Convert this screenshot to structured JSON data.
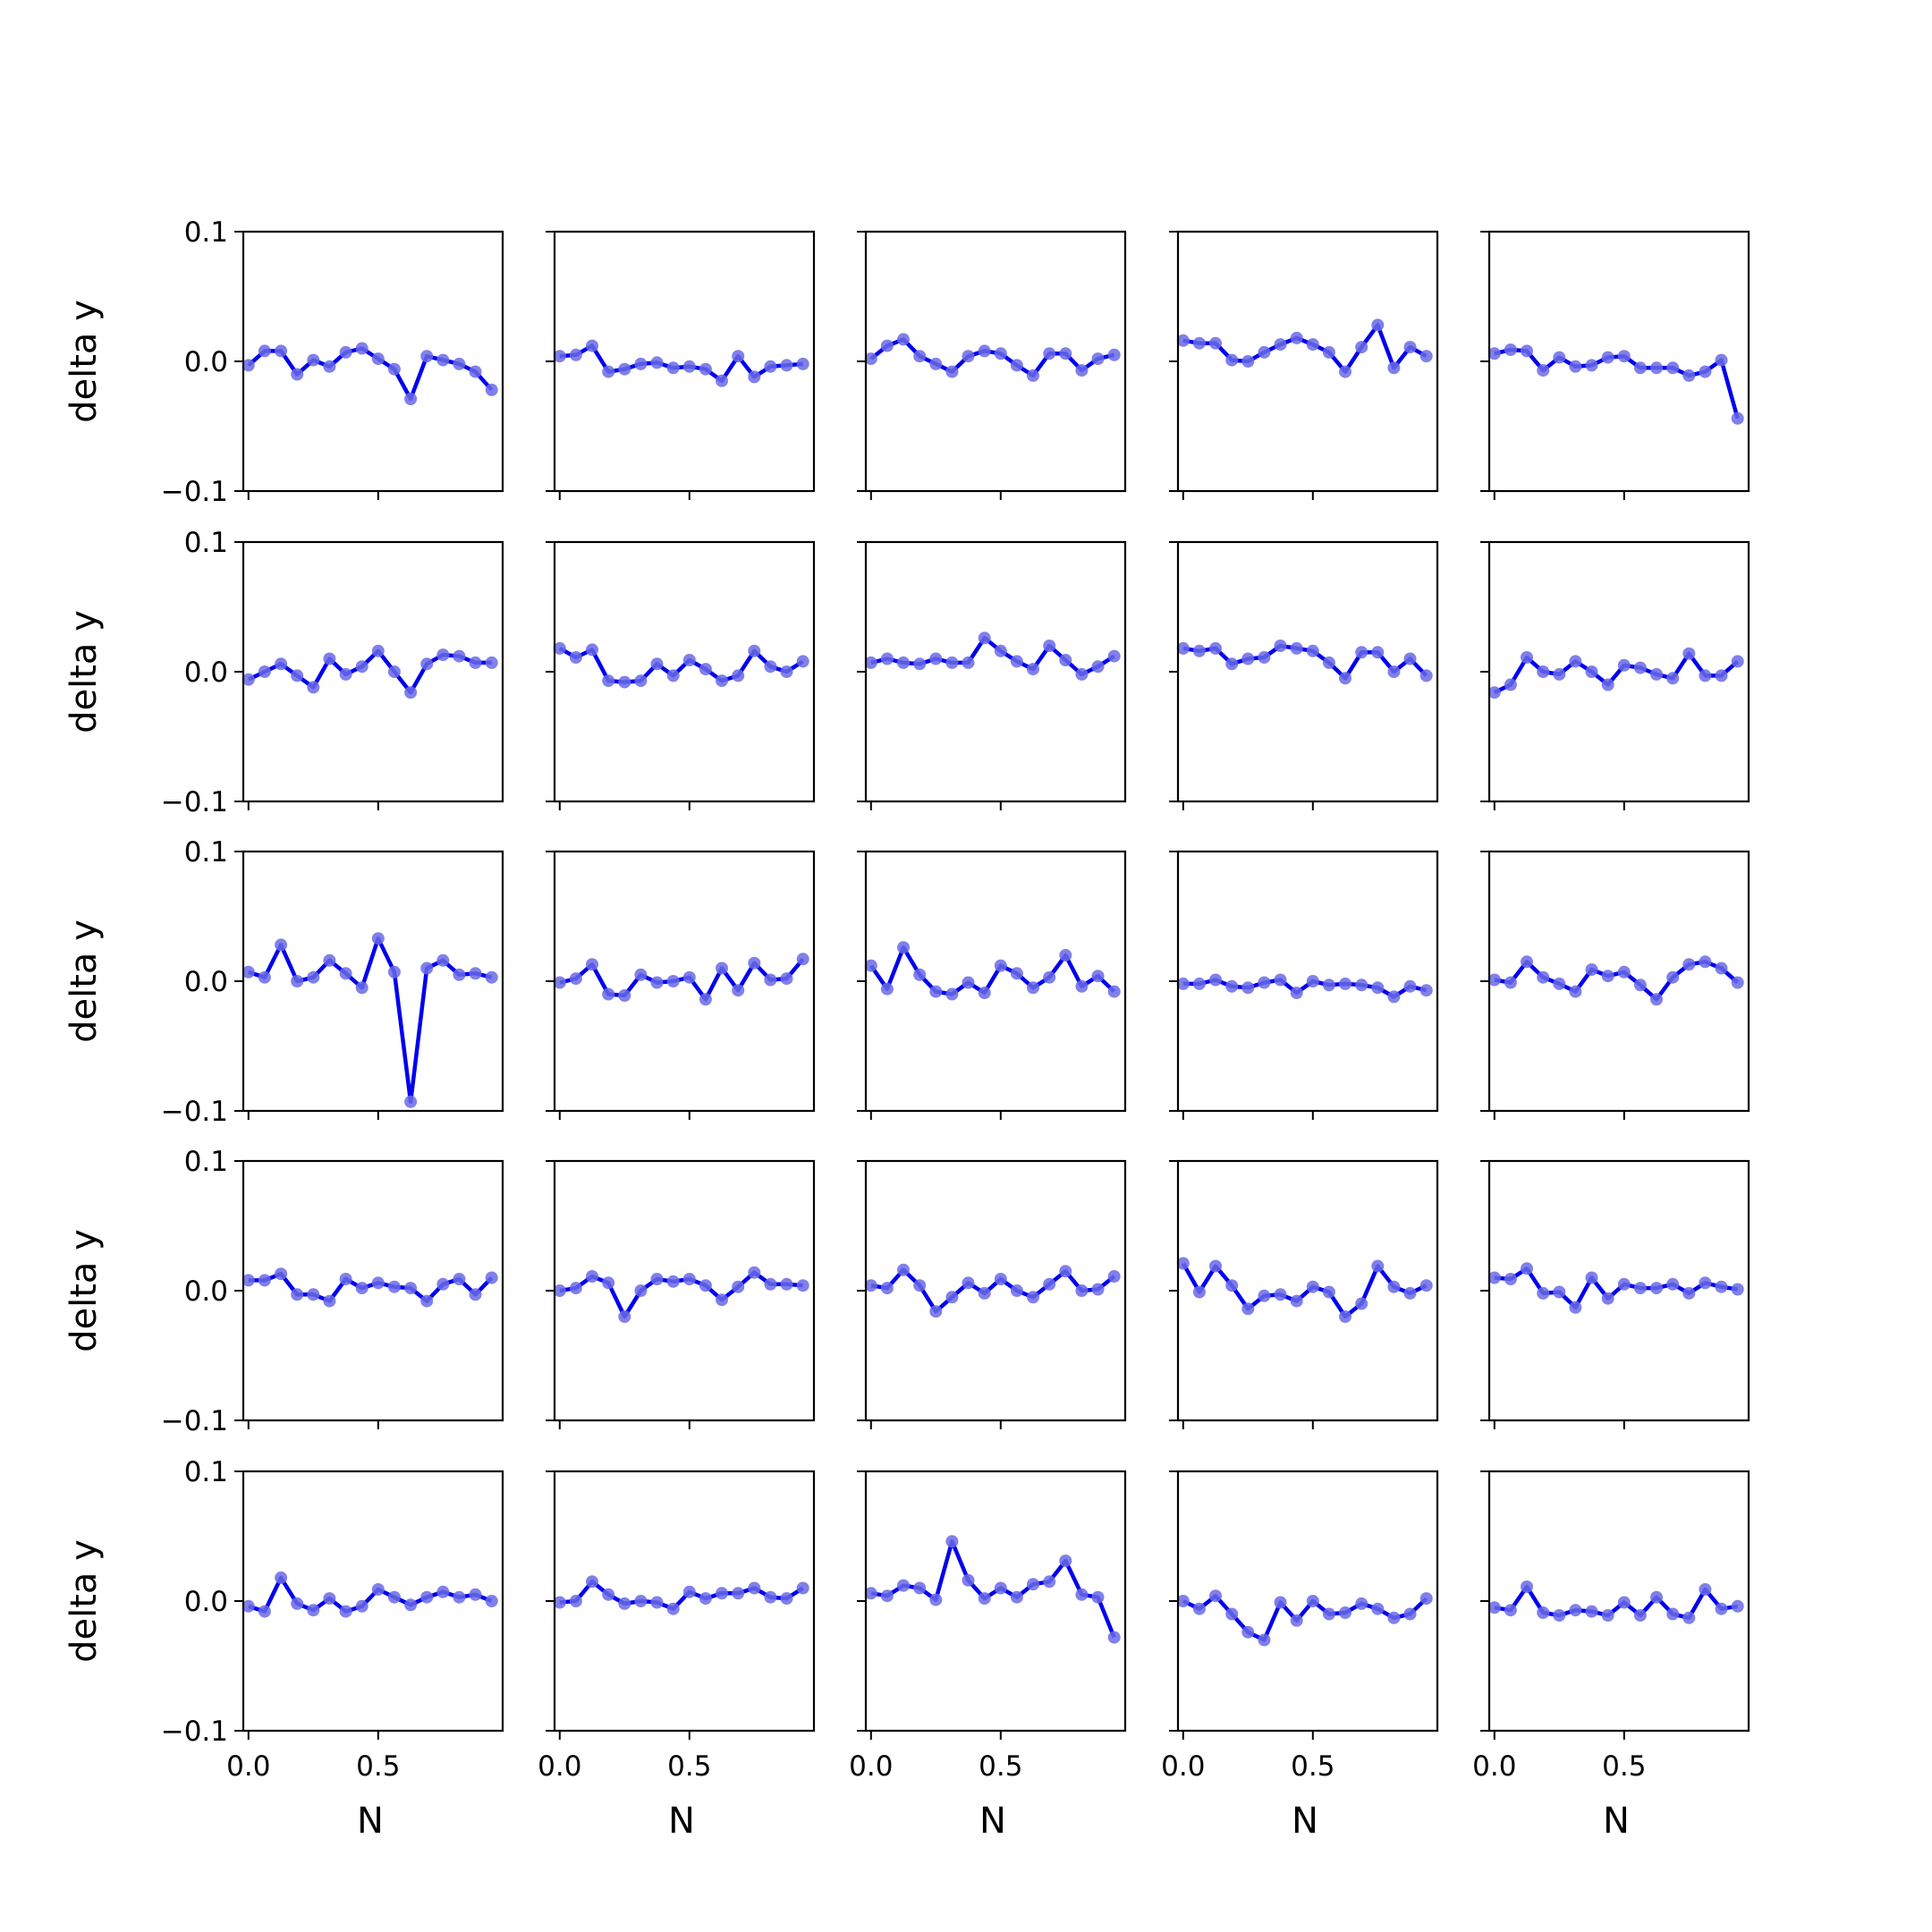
{
  "figure": {
    "rows": 5,
    "cols": 5,
    "line_color": "#0000ee",
    "marker_color": "#6a6ae6",
    "axis_color": "#000000"
  },
  "chart_data": {
    "type": "line",
    "layout": "5x5 grid of small multiples, shared x and y axes",
    "xlabel": "N",
    "ylabel": "delta y",
    "xlim": [
      -0.02,
      0.98
    ],
    "ylim": [
      -0.1,
      0.1
    ],
    "xticks": [
      0.0,
      0.5
    ],
    "xtick_labels": [
      "0.0",
      "0.5"
    ],
    "yticks": [
      -0.1,
      0.0,
      0.1
    ],
    "ytick_labels": [
      "−0.1",
      "0.0",
      "0.1"
    ],
    "grid": false,
    "legend": "none",
    "x": [
      0.0,
      0.0625,
      0.125,
      0.1875,
      0.25,
      0.3125,
      0.375,
      0.4375,
      0.5,
      0.5625,
      0.625,
      0.6875,
      0.75,
      0.8125,
      0.875,
      0.9375
    ],
    "panels": [
      {
        "row": 1,
        "col": 1,
        "values": [
          -0.003,
          0.008,
          0.008,
          -0.01,
          0.001,
          -0.004,
          0.007,
          0.01,
          0.002,
          -0.006,
          -0.029,
          0.004,
          0.001,
          -0.002,
          -0.008,
          -0.022
        ]
      },
      {
        "row": 1,
        "col": 2,
        "values": [
          0.004,
          0.005,
          0.012,
          -0.008,
          -0.006,
          -0.002,
          -0.001,
          -0.005,
          -0.004,
          -0.006,
          -0.015,
          0.004,
          -0.012,
          -0.004,
          -0.003,
          -0.002
        ]
      },
      {
        "row": 1,
        "col": 3,
        "values": [
          0.002,
          0.012,
          0.017,
          0.004,
          -0.002,
          -0.008,
          0.004,
          0.008,
          0.006,
          -0.003,
          -0.011,
          0.006,
          0.006,
          -0.007,
          0.002,
          0.005
        ]
      },
      {
        "row": 1,
        "col": 4,
        "values": [
          0.016,
          0.014,
          0.014,
          0.001,
          0.0,
          0.007,
          0.013,
          0.018,
          0.013,
          0.007,
          -0.008,
          0.011,
          0.028,
          -0.005,
          0.011,
          0.004
        ]
      },
      {
        "row": 1,
        "col": 5,
        "values": [
          0.006,
          0.009,
          0.008,
          -0.007,
          0.003,
          -0.004,
          -0.003,
          0.003,
          0.004,
          -0.005,
          -0.005,
          -0.005,
          -0.011,
          -0.008,
          0.001,
          -0.044
        ]
      },
      {
        "row": 2,
        "col": 1,
        "values": [
          -0.006,
          0.0,
          0.006,
          -0.003,
          -0.012,
          0.01,
          -0.002,
          0.004,
          0.016,
          0.0,
          -0.016,
          0.006,
          0.013,
          0.012,
          0.007,
          0.007
        ]
      },
      {
        "row": 2,
        "col": 2,
        "values": [
          0.018,
          0.011,
          0.017,
          -0.007,
          -0.008,
          -0.007,
          0.006,
          -0.003,
          0.009,
          0.002,
          -0.007,
          -0.003,
          0.016,
          0.004,
          0.0,
          0.008
        ]
      },
      {
        "row": 2,
        "col": 3,
        "values": [
          0.007,
          0.01,
          0.007,
          0.006,
          0.01,
          0.007,
          0.007,
          0.026,
          0.016,
          0.008,
          0.002,
          0.02,
          0.009,
          -0.002,
          0.004,
          0.012
        ]
      },
      {
        "row": 2,
        "col": 4,
        "values": [
          0.018,
          0.016,
          0.018,
          0.006,
          0.01,
          0.011,
          0.02,
          0.018,
          0.016,
          0.007,
          -0.005,
          0.015,
          0.015,
          0.0,
          0.01,
          -0.003
        ]
      },
      {
        "row": 2,
        "col": 5,
        "values": [
          -0.016,
          -0.01,
          0.011,
          0.0,
          -0.002,
          0.008,
          0.0,
          -0.01,
          0.005,
          0.003,
          -0.002,
          -0.005,
          0.014,
          -0.003,
          -0.003,
          0.008
        ]
      },
      {
        "row": 3,
        "col": 1,
        "values": [
          0.007,
          0.003,
          0.028,
          0.0,
          0.003,
          0.016,
          0.006,
          -0.005,
          0.033,
          0.007,
          -0.093,
          0.01,
          0.016,
          0.005,
          0.006,
          0.003
        ]
      },
      {
        "row": 3,
        "col": 2,
        "values": [
          -0.001,
          0.002,
          0.013,
          -0.01,
          -0.011,
          0.005,
          -0.001,
          0.0,
          0.003,
          -0.014,
          0.01,
          -0.007,
          0.014,
          0.001,
          0.002,
          0.017
        ]
      },
      {
        "row": 3,
        "col": 3,
        "values": [
          0.012,
          -0.006,
          0.026,
          0.005,
          -0.008,
          -0.01,
          -0.001,
          -0.009,
          0.012,
          0.006,
          -0.005,
          0.003,
          0.02,
          -0.004,
          0.004,
          -0.008
        ]
      },
      {
        "row": 3,
        "col": 4,
        "values": [
          -0.002,
          -0.002,
          0.001,
          -0.004,
          -0.005,
          -0.001,
          0.001,
          -0.009,
          0.0,
          -0.003,
          -0.002,
          -0.003,
          -0.005,
          -0.012,
          -0.004,
          -0.007
        ]
      },
      {
        "row": 3,
        "col": 5,
        "values": [
          0.001,
          -0.001,
          0.015,
          0.003,
          -0.002,
          -0.008,
          0.009,
          0.004,
          0.007,
          -0.003,
          -0.014,
          0.003,
          0.013,
          0.015,
          0.01,
          -0.001
        ]
      },
      {
        "row": 4,
        "col": 1,
        "values": [
          0.008,
          0.008,
          0.013,
          -0.003,
          -0.003,
          -0.008,
          0.009,
          0.002,
          0.006,
          0.003,
          0.002,
          -0.008,
          0.005,
          0.009,
          -0.003,
          0.01
        ]
      },
      {
        "row": 4,
        "col": 2,
        "values": [
          0.0,
          0.002,
          0.011,
          0.006,
          -0.02,
          0.0,
          0.009,
          0.007,
          0.009,
          0.004,
          -0.007,
          0.003,
          0.014,
          0.005,
          0.005,
          0.004
        ]
      },
      {
        "row": 4,
        "col": 3,
        "values": [
          0.004,
          0.002,
          0.016,
          0.004,
          -0.016,
          -0.005,
          0.006,
          -0.002,
          0.009,
          0.0,
          -0.005,
          0.005,
          0.015,
          0.0,
          0.001,
          0.011
        ]
      },
      {
        "row": 4,
        "col": 4,
        "values": [
          0.021,
          -0.001,
          0.019,
          0.004,
          -0.014,
          -0.004,
          -0.003,
          -0.008,
          0.003,
          -0.001,
          -0.02,
          -0.01,
          0.019,
          0.003,
          -0.002,
          0.004
        ]
      },
      {
        "row": 4,
        "col": 5,
        "values": [
          0.01,
          0.009,
          0.017,
          -0.002,
          -0.001,
          -0.013,
          0.01,
          -0.006,
          0.005,
          0.002,
          0.002,
          0.005,
          -0.002,
          0.006,
          0.003,
          0.001
        ]
      },
      {
        "row": 5,
        "col": 1,
        "values": [
          -0.004,
          -0.008,
          0.018,
          -0.002,
          -0.007,
          0.002,
          -0.008,
          -0.004,
          0.009,
          0.003,
          -0.003,
          0.003,
          0.007,
          0.003,
          0.005,
          0.0
        ]
      },
      {
        "row": 5,
        "col": 2,
        "values": [
          -0.001,
          0.0,
          0.015,
          0.005,
          -0.002,
          0.0,
          -0.001,
          -0.006,
          0.007,
          0.002,
          0.006,
          0.006,
          0.01,
          0.003,
          0.002,
          0.01
        ]
      },
      {
        "row": 5,
        "col": 3,
        "values": [
          0.006,
          0.004,
          0.012,
          0.01,
          0.001,
          0.046,
          0.016,
          0.002,
          0.01,
          0.003,
          0.013,
          0.015,
          0.031,
          0.005,
          0.003,
          -0.028
        ]
      },
      {
        "row": 5,
        "col": 4,
        "values": [
          0.0,
          -0.006,
          0.004,
          -0.01,
          -0.024,
          -0.03,
          -0.001,
          -0.015,
          0.0,
          -0.01,
          -0.009,
          -0.002,
          -0.006,
          -0.013,
          -0.01,
          0.002
        ]
      },
      {
        "row": 5,
        "col": 5,
        "values": [
          -0.005,
          -0.007,
          0.011,
          -0.009,
          -0.011,
          -0.007,
          -0.008,
          -0.011,
          -0.001,
          -0.011,
          0.003,
          -0.01,
          -0.013,
          0.009,
          -0.006,
          -0.004
        ]
      }
    ]
  }
}
